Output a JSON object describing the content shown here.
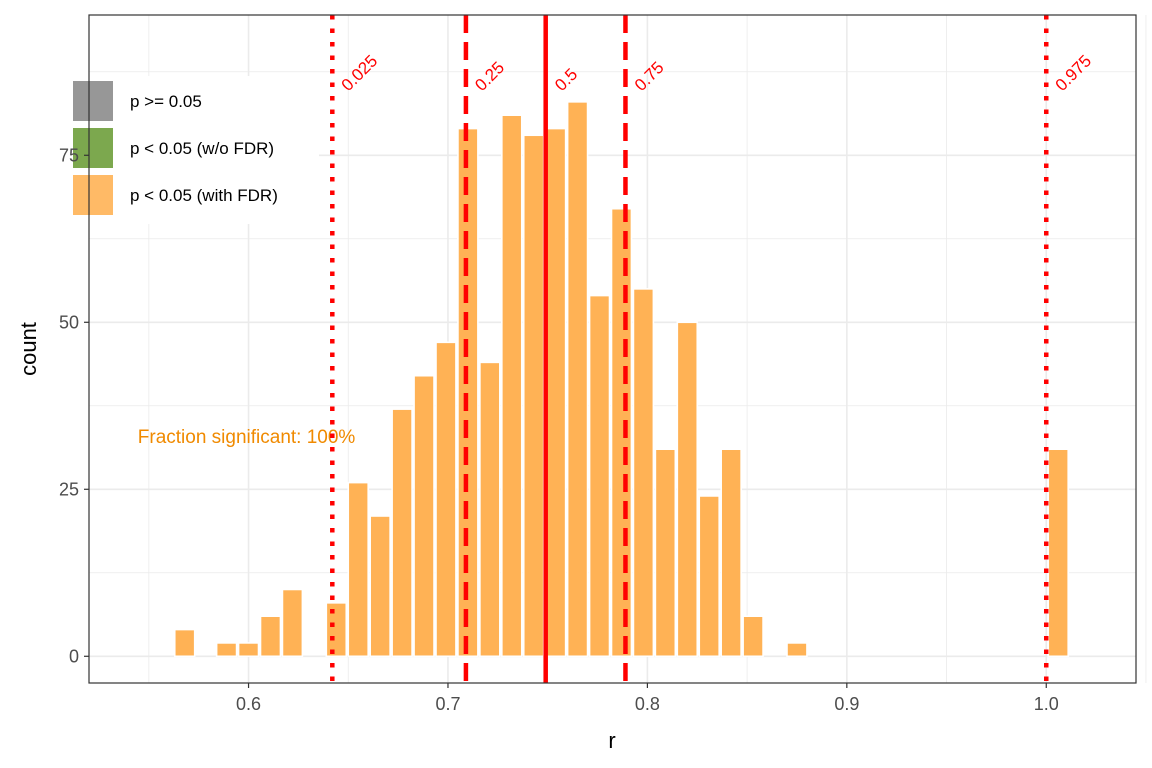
{
  "chart_data": {
    "type": "bar",
    "xlabel": "r",
    "ylabel": "count",
    "xlim": [
      0.52,
      1.045
    ],
    "ylim": [
      -4,
      96
    ],
    "x_ticks": [
      0.6,
      0.7,
      0.8,
      0.9,
      1.0
    ],
    "x_tick_labels": [
      "0.6",
      "0.7",
      "0.8",
      "0.9",
      "1.0"
    ],
    "y_ticks": [
      0,
      25,
      50,
      75
    ],
    "y_tick_labels": [
      "0",
      "25",
      "50",
      "75"
    ],
    "grid": true,
    "bin_width": 0.01,
    "bins": [
      {
        "x": 0.568,
        "count": 4
      },
      {
        "x": 0.589,
        "count": 2
      },
      {
        "x": 0.6,
        "count": 2
      },
      {
        "x": 0.611,
        "count": 6
      },
      {
        "x": 0.622,
        "count": 10
      },
      {
        "x": 0.644,
        "count": 8
      },
      {
        "x": 0.655,
        "count": 26
      },
      {
        "x": 0.666,
        "count": 21
      },
      {
        "x": 0.677,
        "count": 37
      },
      {
        "x": 0.688,
        "count": 42
      },
      {
        "x": 0.699,
        "count": 47
      },
      {
        "x": 0.71,
        "count": 79
      },
      {
        "x": 0.721,
        "count": 44
      },
      {
        "x": 0.732,
        "count": 81
      },
      {
        "x": 0.743,
        "count": 78
      },
      {
        "x": 0.754,
        "count": 79
      },
      {
        "x": 0.765,
        "count": 83
      },
      {
        "x": 0.776,
        "count": 54
      },
      {
        "x": 0.787,
        "count": 67
      },
      {
        "x": 0.798,
        "count": 55
      },
      {
        "x": 0.809,
        "count": 31
      },
      {
        "x": 0.82,
        "count": 50
      },
      {
        "x": 0.831,
        "count": 24
      },
      {
        "x": 0.842,
        "count": 31
      },
      {
        "x": 0.853,
        "count": 6
      },
      {
        "x": 0.875,
        "count": 2
      },
      {
        "x": 1.006,
        "count": 31
      }
    ],
    "bar_color": "#ffb255",
    "quantiles": [
      {
        "label": "0.025",
        "x": 0.642,
        "style": "dotted"
      },
      {
        "label": "0.25",
        "x": 0.709,
        "style": "dashed"
      },
      {
        "label": "0.5",
        "x": 0.749,
        "style": "solid"
      },
      {
        "label": "0.75",
        "x": 0.789,
        "style": "dashed"
      },
      {
        "label": "0.975",
        "x": 1.0,
        "style": "dotted"
      }
    ],
    "quantile_color": "#ff0000",
    "legend": {
      "placement": "top-left",
      "entries": [
        {
          "label": "p >= 0.05",
          "color": "#8c8c8c"
        },
        {
          "label": "p < 0.05 (w/o FDR)",
          "color": "#6e9f3b"
        },
        {
          "label": "p < 0.05 (with FDR)",
          "color": "#ffb255"
        }
      ]
    },
    "annotation": {
      "text": "Fraction significant: 100%",
      "x": 0.599,
      "y": 33,
      "color": "#f08a00"
    }
  }
}
